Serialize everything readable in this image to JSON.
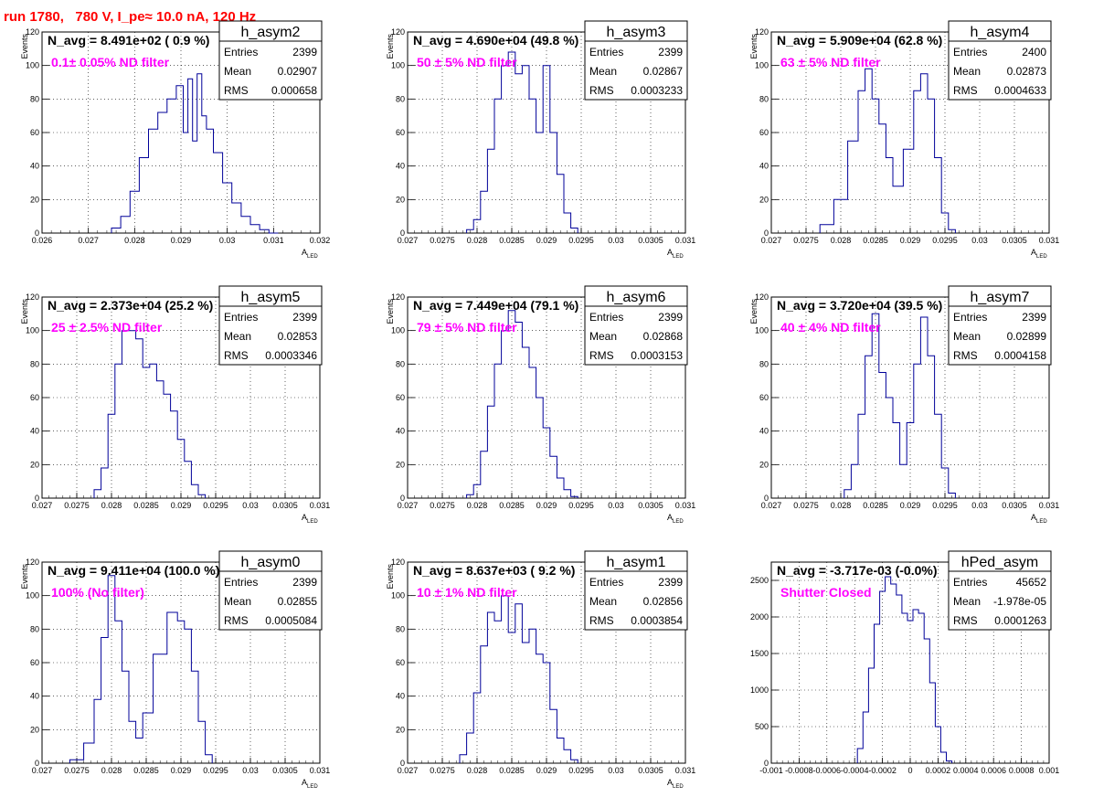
{
  "page_title": "run 1780,   780 V, I_pe≈ 10.0 nA, 120 Hz",
  "chart_data": [
    {
      "type": "histogram",
      "name": "h_asym2",
      "navg": "N_avg = 8.491e+02 ( 0.9 %)",
      "filter": "0.1± 0.05% ND filter",
      "stats": {
        "entries": "2399",
        "mean": "0.02907",
        "rms": "0.000658"
      },
      "xlim": [
        0.026,
        0.032
      ],
      "ylim": [
        0,
        120
      ],
      "xticks": [
        "0.026",
        "0.027",
        "0.028",
        "0.029",
        "0.03",
        "0.031",
        "0.032"
      ],
      "yticks": [
        "0",
        "20",
        "40",
        "60",
        "80",
        "100",
        "120"
      ],
      "ylabel": "Events",
      "xlabel": "A",
      "xlabel_sub": "LED",
      "x": [
        0.0276,
        0.0278,
        0.028,
        0.0282,
        0.0284,
        0.0286,
        0.0288,
        0.029,
        0.0291,
        0.0292,
        0.0293,
        0.0294,
        0.0295,
        0.0296,
        0.0298,
        0.03,
        0.0302,
        0.0304,
        0.0306,
        0.0308,
        0.031
      ],
      "y": [
        3,
        10,
        25,
        45,
        62,
        72,
        80,
        88,
        60,
        92,
        55,
        95,
        70,
        62,
        48,
        30,
        18,
        10,
        5,
        2,
        0
      ]
    },
    {
      "type": "histogram",
      "name": "h_asym3",
      "navg": "N_avg = 4.690e+04 (49.8 %)",
      "filter": "50 ± 5% ND filter",
      "stats": {
        "entries": "2399",
        "mean": "0.02867",
        "rms": "0.0003233"
      },
      "xlim": [
        0.027,
        0.031
      ],
      "ylim": [
        0,
        120
      ],
      "xticks": [
        "0.027",
        "0.0275",
        "0.028",
        "0.0285",
        "0.029",
        "0.0295",
        "0.03",
        "0.0305",
        "0.031"
      ],
      "yticks": [
        "0",
        "20",
        "40",
        "60",
        "80",
        "100",
        "120"
      ],
      "ylabel": "Events",
      "xlabel": "A",
      "xlabel_sub": "LED",
      "x": [
        0.0279,
        0.028,
        0.0281,
        0.0282,
        0.0283,
        0.0284,
        0.0285,
        0.0286,
        0.0287,
        0.0288,
        0.0289,
        0.029,
        0.0291,
        0.0292,
        0.0293,
        0.0294
      ],
      "y": [
        2,
        8,
        25,
        50,
        80,
        100,
        108,
        95,
        100,
        80,
        60,
        100,
        60,
        35,
        12,
        3
      ]
    },
    {
      "type": "histogram",
      "name": "h_asym4",
      "navg": "N_avg = 5.909e+04 (62.8 %)",
      "filter": "63 ± 5% ND filter",
      "stats": {
        "entries": "2400",
        "mean": "0.02873",
        "rms": "0.0004633"
      },
      "xlim": [
        0.027,
        0.031
      ],
      "ylim": [
        0,
        120
      ],
      "xticks": [
        "0.027",
        "0.0275",
        "0.028",
        "0.0285",
        "0.029",
        "0.0295",
        "0.03",
        "0.0305",
        "0.031"
      ],
      "yticks": [
        "0",
        "20",
        "40",
        "60",
        "80",
        "100",
        "120"
      ],
      "ylabel": "Events",
      "xlabel": "A",
      "xlabel_sub": "LED",
      "x": [
        0.0278,
        0.028,
        0.0282,
        0.0283,
        0.0284,
        0.0285,
        0.0286,
        0.0287,
        0.0288,
        0.029,
        0.0291,
        0.0292,
        0.0293,
        0.0294,
        0.0295,
        0.0296
      ],
      "y": [
        5,
        20,
        55,
        85,
        98,
        80,
        65,
        45,
        28,
        50,
        85,
        95,
        80,
        45,
        12,
        2
      ]
    },
    {
      "type": "histogram",
      "name": "h_asym5",
      "navg": "N_avg = 2.373e+04 (25.2 %)",
      "filter": "25 ± 2.5% ND filter",
      "stats": {
        "entries": "2399",
        "mean": "0.02853",
        "rms": "0.0003346"
      },
      "xlim": [
        0.027,
        0.031
      ],
      "ylim": [
        0,
        120
      ],
      "xticks": [
        "0.027",
        "0.0275",
        "0.028",
        "0.0285",
        "0.029",
        "0.0295",
        "0.03",
        "0.0305",
        "0.031"
      ],
      "yticks": [
        "0",
        "20",
        "40",
        "60",
        "80",
        "100",
        "120"
      ],
      "ylabel": "Events",
      "xlabel": "A",
      "xlabel_sub": "LED",
      "x": [
        0.0278,
        0.0279,
        0.028,
        0.0281,
        0.0282,
        0.0283,
        0.0284,
        0.0285,
        0.0286,
        0.0287,
        0.0288,
        0.0289,
        0.029,
        0.0291,
        0.0292,
        0.0293
      ],
      "y": [
        5,
        18,
        50,
        80,
        100,
        100,
        95,
        78,
        80,
        70,
        62,
        52,
        35,
        22,
        8,
        2
      ]
    },
    {
      "type": "histogram",
      "name": "h_asym6",
      "navg": "N_avg = 7.449e+04 (79.1 %)",
      "filter": "79 ± 5% ND filter",
      "stats": {
        "entries": "2399",
        "mean": "0.02868",
        "rms": "0.0003153"
      },
      "xlim": [
        0.027,
        0.031
      ],
      "ylim": [
        0,
        120
      ],
      "xticks": [
        "0.027",
        "0.0275",
        "0.028",
        "0.0285",
        "0.029",
        "0.0295",
        "0.03",
        "0.0305",
        "0.031"
      ],
      "yticks": [
        "0",
        "20",
        "40",
        "60",
        "80",
        "100",
        "120"
      ],
      "ylabel": "Events",
      "xlabel": "A",
      "xlabel_sub": "LED",
      "x": [
        0.0279,
        0.028,
        0.0281,
        0.0282,
        0.0283,
        0.0284,
        0.0285,
        0.0286,
        0.0287,
        0.0288,
        0.0289,
        0.029,
        0.0291,
        0.0292,
        0.0293,
        0.0294
      ],
      "y": [
        2,
        8,
        28,
        55,
        80,
        100,
        112,
        105,
        90,
        78,
        60,
        42,
        25,
        12,
        5,
        1
      ]
    },
    {
      "type": "histogram",
      "name": "h_asym7",
      "navg": "N_avg = 3.720e+04 (39.5 %)",
      "filter": "40 ± 4% ND filter",
      "stats": {
        "entries": "2399",
        "mean": "0.02899",
        "rms": "0.0004158"
      },
      "xlim": [
        0.027,
        0.031
      ],
      "ylim": [
        0,
        120
      ],
      "xticks": [
        "0.027",
        "0.0275",
        "0.028",
        "0.0285",
        "0.029",
        "0.0295",
        "0.03",
        "0.0305",
        "0.031"
      ],
      "yticks": [
        "0",
        "20",
        "40",
        "60",
        "80",
        "100",
        "120"
      ],
      "ylabel": "Events",
      "xlabel": "A",
      "xlabel_sub": "LED",
      "x": [
        0.0281,
        0.0282,
        0.0283,
        0.0284,
        0.0285,
        0.0286,
        0.0287,
        0.0288,
        0.0289,
        0.029,
        0.0291,
        0.0292,
        0.0293,
        0.0294,
        0.0295,
        0.0296
      ],
      "y": [
        5,
        20,
        50,
        85,
        110,
        75,
        60,
        45,
        20,
        45,
        80,
        108,
        85,
        50,
        18,
        3
      ]
    },
    {
      "type": "histogram",
      "name": "h_asym0",
      "navg": "N_avg = 9.411e+04 (100.0 %)",
      "filter": "100% (No filter)",
      "stats": {
        "entries": "2399",
        "mean": "0.02855",
        "rms": "0.0005084"
      },
      "xlim": [
        0.027,
        0.031
      ],
      "ylim": [
        0,
        120
      ],
      "xticks": [
        "0.027",
        "0.0275",
        "0.028",
        "0.0285",
        "0.029",
        "0.0295",
        "0.03",
        "0.0305",
        "0.031"
      ],
      "yticks": [
        "0",
        "20",
        "40",
        "60",
        "80",
        "100",
        "120"
      ],
      "ylabel": "Events",
      "xlabel": "A",
      "xlabel_sub": "LED",
      "x": [
        0.0275,
        0.0277,
        0.0278,
        0.0279,
        0.028,
        0.0281,
        0.0282,
        0.0283,
        0.0284,
        0.0285,
        0.0287,
        0.0289,
        0.029,
        0.0291,
        0.0292,
        0.0293,
        0.0294
      ],
      "y": [
        2,
        12,
        38,
        75,
        112,
        85,
        55,
        25,
        15,
        30,
        65,
        90,
        85,
        80,
        55,
        25,
        5
      ]
    },
    {
      "type": "histogram",
      "name": "h_asym1",
      "navg": "N_avg = 8.637e+03 ( 9.2 %)",
      "filter": "10 ± 1% ND filter",
      "stats": {
        "entries": "2399",
        "mean": "0.02856",
        "rms": "0.0003854"
      },
      "xlim": [
        0.027,
        0.031
      ],
      "ylim": [
        0,
        120
      ],
      "xticks": [
        "0.027",
        "0.0275",
        "0.028",
        "0.0285",
        "0.029",
        "0.0295",
        "0.03",
        "0.0305",
        "0.031"
      ],
      "yticks": [
        "0",
        "20",
        "40",
        "60",
        "80",
        "100",
        "120"
      ],
      "ylabel": "Events",
      "xlabel": "A",
      "xlabel_sub": "LED",
      "x": [
        0.0278,
        0.0279,
        0.028,
        0.0281,
        0.0282,
        0.0283,
        0.0284,
        0.0285,
        0.0286,
        0.0287,
        0.0288,
        0.0289,
        0.029,
        0.0291,
        0.0292,
        0.0293,
        0.0294
      ],
      "y": [
        5,
        18,
        42,
        70,
        90,
        85,
        100,
        78,
        95,
        72,
        80,
        65,
        60,
        32,
        15,
        8,
        2
      ]
    },
    {
      "type": "histogram",
      "name": "hPed_asym",
      "navg": "N_avg = -3.717e-03 (-0.0%)",
      "filter": "Shutter Closed",
      "stats": {
        "entries": "45652",
        "mean": "-1.978e-05",
        "rms": "0.0001263"
      },
      "xlim": [
        -0.001,
        0.001
      ],
      "ylim": [
        0,
        2750
      ],
      "xticks": [
        "-0.001",
        "-0.0008",
        "-0.0006",
        "-0.0004",
        "-0.0002",
        "0",
        "0.0002",
        "0.0004",
        "0.0006",
        "0.0008",
        "0.001"
      ],
      "yticks": [
        "0",
        "500",
        "1000",
        "1500",
        "2000",
        "2500"
      ],
      "ylabel": "",
      "xlabel": "",
      "xlabel_sub": "",
      "x": [
        -0.00036,
        -0.00032,
        -0.00028,
        -0.00024,
        -0.0002,
        -0.00016,
        -0.00012,
        -8e-05,
        -4e-05,
        0,
        4e-05,
        8e-05,
        0.00012,
        0.00016,
        0.0002,
        0.00024,
        0.00028
      ],
      "y": [
        200,
        700,
        1300,
        1900,
        2350,
        2550,
        2450,
        2300,
        2050,
        1950,
        2100,
        2050,
        1700,
        1100,
        500,
        150,
        30
      ]
    }
  ]
}
